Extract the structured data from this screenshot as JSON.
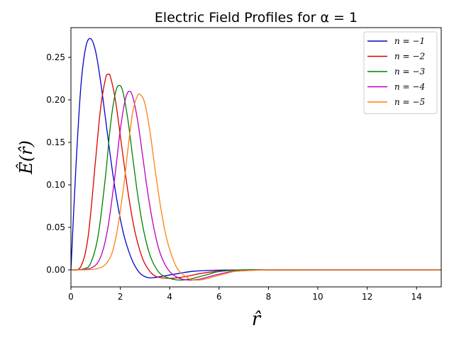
{
  "chart_data": {
    "type": "line",
    "title": "Electric Field Profiles for α = 1",
    "xlabel": "r̂",
    "ylabel": "Ê(r̂)",
    "xlim": [
      0,
      15
    ],
    "ylim": [
      -0.02,
      0.285
    ],
    "xticks": [
      0,
      2,
      4,
      6,
      8,
      10,
      12,
      14
    ],
    "yticks": [
      0.0,
      0.05,
      0.1,
      0.15,
      0.2,
      0.25
    ],
    "ytick_labels": [
      "0.00",
      "0.05",
      "0.10",
      "0.15",
      "0.20",
      "0.25"
    ],
    "legend_position": "top-right",
    "series": [
      {
        "name": "n = −1",
        "color": "#0000cc",
        "x": [
          0,
          0.2,
          0.4,
          0.6,
          0.8,
          1.0,
          1.2,
          1.4,
          1.6,
          1.8,
          2.0,
          2.2,
          2.5,
          2.8,
          3.1,
          3.4,
          3.8,
          4.2,
          4.6,
          5.0,
          5.5,
          6.0,
          7.0,
          8.0,
          10.0,
          15.0
        ],
        "y": [
          0,
          0.12,
          0.215,
          0.262,
          0.272,
          0.257,
          0.222,
          0.178,
          0.133,
          0.093,
          0.06,
          0.035,
          0.01,
          -0.004,
          -0.009,
          -0.009,
          -0.007,
          -0.005,
          -0.003,
          -0.0015,
          -0.0007,
          -0.0003,
          0,
          0,
          0,
          0
        ]
      },
      {
        "name": "n = −2",
        "color": "#dd0000",
        "x": [
          0,
          0.4,
          0.7,
          1.0,
          1.2,
          1.4,
          1.5,
          1.6,
          1.8,
          2.0,
          2.2,
          2.4,
          2.6,
          2.8,
          3.0,
          3.3,
          3.6,
          4.0,
          4.4,
          4.8,
          5.3,
          6.0,
          7.0,
          8.0,
          10.0,
          15.0
        ],
        "y": [
          0,
          0.004,
          0.04,
          0.13,
          0.19,
          0.225,
          0.23,
          0.227,
          0.2,
          0.158,
          0.114,
          0.075,
          0.044,
          0.022,
          0.007,
          -0.005,
          -0.009,
          -0.01,
          -0.009,
          -0.007,
          -0.004,
          -0.0015,
          0,
          0,
          0,
          0
        ]
      },
      {
        "name": "n = −3",
        "color": "#008000",
        "x": [
          0,
          0.5,
          0.8,
          1.1,
          1.4,
          1.6,
          1.8,
          1.95,
          2.1,
          2.3,
          2.5,
          2.7,
          2.9,
          3.1,
          3.3,
          3.6,
          4.0,
          4.4,
          4.8,
          5.2,
          5.6,
          6.0,
          7.0,
          8.0,
          10.0,
          15.0
        ],
        "y": [
          0,
          0.001,
          0.008,
          0.04,
          0.11,
          0.17,
          0.208,
          0.217,
          0.21,
          0.178,
          0.133,
          0.089,
          0.053,
          0.027,
          0.01,
          -0.004,
          -0.01,
          -0.012,
          -0.011,
          -0.008,
          -0.005,
          -0.002,
          0,
          0,
          0,
          0
        ]
      },
      {
        "name": "n = −4",
        "color": "#bb00bb",
        "x": [
          0,
          0.8,
          1.2,
          1.5,
          1.8,
          2.0,
          2.2,
          2.35,
          2.5,
          2.7,
          2.9,
          3.1,
          3.3,
          3.5,
          3.7,
          4.0,
          4.4,
          4.8,
          5.2,
          5.6,
          6.0,
          6.5,
          7.0,
          8.0,
          10.0,
          15.0
        ],
        "y": [
          0,
          0.002,
          0.015,
          0.05,
          0.115,
          0.165,
          0.2,
          0.21,
          0.204,
          0.176,
          0.135,
          0.093,
          0.058,
          0.031,
          0.013,
          -0.002,
          -0.01,
          -0.012,
          -0.011,
          -0.008,
          -0.005,
          -0.002,
          -0.001,
          0,
          0,
          0
        ]
      },
      {
        "name": "n = −5",
        "color": "#ff7f0e",
        "x": [
          0,
          1.0,
          1.5,
          1.8,
          2.1,
          2.3,
          2.5,
          2.7,
          2.85,
          3.0,
          3.2,
          3.4,
          3.6,
          3.8,
          4.0,
          4.3,
          4.7,
          5.0,
          5.4,
          5.8,
          6.2,
          6.6,
          7.0,
          8.0,
          10.0,
          15.0
        ],
        "y": [
          0,
          0.001,
          0.01,
          0.035,
          0.09,
          0.14,
          0.185,
          0.205,
          0.205,
          0.195,
          0.163,
          0.12,
          0.08,
          0.047,
          0.024,
          0.002,
          -0.009,
          -0.012,
          -0.011,
          -0.008,
          -0.005,
          -0.002,
          -0.001,
          0,
          0,
          0
        ]
      }
    ]
  }
}
